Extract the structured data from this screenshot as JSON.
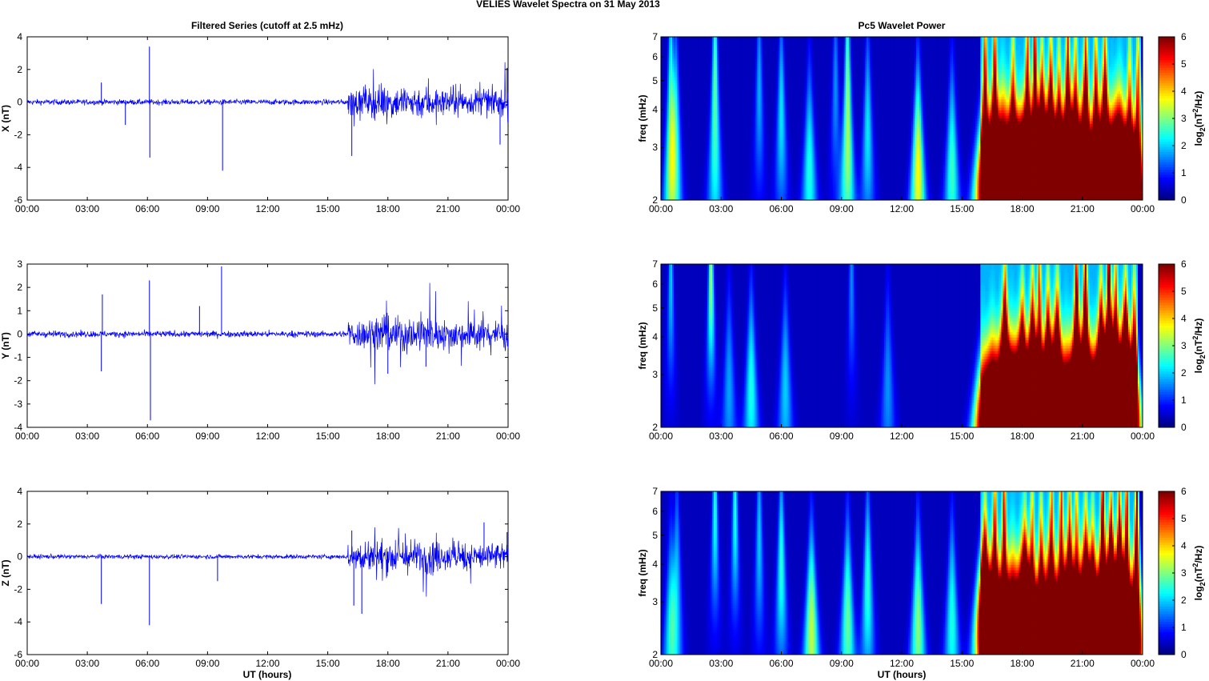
{
  "figure": {
    "title": "VELIES Wavelet Spectra on 31 May      2013",
    "left_title": "Filtered Series (cutoff at 2.5 mHz)",
    "right_title": "Pc5 Wavelet Power",
    "xlabel": "UT (hours)",
    "freq_label": "freq (mHz)",
    "colorbar_label": "log2(nT²/Hz)",
    "colorbar_label_parts": {
      "base": "log",
      "sub": "2",
      "pre": "(nT",
      "sup": "2",
      "post": "/Hz)"
    },
    "colors": {
      "series": "#0000ff",
      "background": "#00008f"
    },
    "colormap": "jet",
    "grid": false
  },
  "chart_data": [
    {
      "type": "line",
      "component": "X",
      "ylabel": "X (nT)",
      "x_ticks": [
        "00:00",
        "03:00",
        "06:00",
        "09:00",
        "12:00",
        "15:00",
        "18:00",
        "21:00",
        "00:00"
      ],
      "xlim_hours": [
        0,
        24
      ],
      "ylim": [
        -6,
        4
      ],
      "y_ticks": [
        4,
        2,
        0,
        -2,
        -4,
        -6
      ],
      "baseline_amplitude": 0.15,
      "active_from_hour": 16.0,
      "active_amplitude": 0.7,
      "spikes": [
        {
          "t": 3.7,
          "v": 1.2
        },
        {
          "t": 4.9,
          "v": -1.4
        },
        {
          "t": 6.1,
          "v": 3.4
        },
        {
          "t": 6.12,
          "v": -3.4
        },
        {
          "t": 9.75,
          "v": -4.2
        },
        {
          "t": 16.2,
          "v": -3.3
        },
        {
          "t": 23.6,
          "v": -2.6
        },
        {
          "t": 23.95,
          "v": 2.1
        }
      ]
    },
    {
      "type": "line",
      "component": "Y",
      "ylabel": "Y (nT)",
      "x_ticks": [
        "00:00",
        "03:00",
        "06:00",
        "09:00",
        "12:00",
        "15:00",
        "18:00",
        "21:00",
        "00:00"
      ],
      "xlim_hours": [
        0,
        24
      ],
      "ylim": [
        -4,
        3
      ],
      "y_ticks": [
        3,
        2,
        1,
        0,
        -1,
        -2,
        -3,
        -4
      ],
      "baseline_amplitude": 0.12,
      "active_from_hour": 16.0,
      "active_amplitude": 0.55,
      "spikes": [
        {
          "t": 3.7,
          "v": -1.6
        },
        {
          "t": 3.75,
          "v": 1.7
        },
        {
          "t": 6.1,
          "v": 2.3
        },
        {
          "t": 6.15,
          "v": -3.7
        },
        {
          "t": 8.6,
          "v": 1.2
        },
        {
          "t": 9.7,
          "v": 2.9
        },
        {
          "t": 18.0,
          "v": -1.7
        },
        {
          "t": 19.9,
          "v": -1.4
        }
      ]
    },
    {
      "type": "line",
      "component": "Z",
      "ylabel": "Z (nT)",
      "x_ticks": [
        "00:00",
        "03:00",
        "06:00",
        "09:00",
        "12:00",
        "15:00",
        "18:00",
        "21:00",
        "00:00"
      ],
      "xlim_hours": [
        0,
        24
      ],
      "ylim": [
        -6,
        4
      ],
      "y_ticks": [
        4,
        2,
        0,
        -2,
        -4,
        -6
      ],
      "baseline_amplitude": 0.12,
      "active_from_hour": 16.0,
      "active_amplitude": 0.75,
      "spikes": [
        {
          "t": 3.7,
          "v": -2.9
        },
        {
          "t": 6.1,
          "v": -4.2
        },
        {
          "t": 9.5,
          "v": -1.5
        },
        {
          "t": 16.3,
          "v": -3.0
        },
        {
          "t": 16.7,
          "v": -3.5
        },
        {
          "t": 16.2,
          "v": 1.6
        },
        {
          "t": 22.8,
          "v": 2.1
        },
        {
          "t": 23.95,
          "v": 1.5
        }
      ]
    },
    {
      "type": "heatmap",
      "component": "X",
      "ylabel": "freq (mHz)",
      "yscale": "log",
      "ylim": [
        2,
        7
      ],
      "y_ticks": [
        2,
        3,
        4,
        5,
        6,
        7
      ],
      "x_ticks": [
        "00:00",
        "03:00",
        "06:00",
        "09:00",
        "12:00",
        "15:00",
        "18:00",
        "21:00",
        "00:00"
      ],
      "xlim_hours": [
        0,
        24
      ],
      "clim": [
        0,
        6
      ],
      "colorbar_ticks": [
        0,
        1,
        2,
        3,
        4,
        5,
        6
      ],
      "quiet_bursts": [
        {
          "t": 0.5,
          "f": 2.4,
          "p": 2.3
        },
        {
          "t": 0.75,
          "f": 3.6,
          "p": 2.0
        },
        {
          "t": 0.5,
          "f": 6.3,
          "p": 1.6
        },
        {
          "t": 2.7,
          "f": 2.5,
          "p": 1.8
        },
        {
          "t": 2.7,
          "f": 6.5,
          "p": 2.2
        },
        {
          "t": 4.9,
          "f": 4.8,
          "p": 1.6
        },
        {
          "t": 6.0,
          "f": 3.9,
          "p": 2.0
        },
        {
          "t": 7.4,
          "f": 2.5,
          "p": 2.3
        },
        {
          "t": 8.7,
          "f": 4.8,
          "p": 1.4
        },
        {
          "t": 9.3,
          "f": 6.6,
          "p": 2.0
        },
        {
          "t": 9.3,
          "f": 2.6,
          "p": 2.6
        },
        {
          "t": 10.3,
          "f": 3.4,
          "p": 2.0
        },
        {
          "t": 12.8,
          "f": 2.5,
          "p": 3.8
        },
        {
          "t": 14.5,
          "f": 2.5,
          "p": 2.5
        }
      ],
      "active_from_hour": 15.9,
      "active_until_hour": 23.8
    },
    {
      "type": "heatmap",
      "component": "Y",
      "ylabel": "freq (mHz)",
      "yscale": "log",
      "ylim": [
        2,
        7
      ],
      "y_ticks": [
        2,
        3,
        4,
        5,
        6,
        7
      ],
      "x_ticks": [
        "00:00",
        "03:00",
        "06:00",
        "09:00",
        "12:00",
        "15:00",
        "18:00",
        "21:00",
        "00:00"
      ],
      "xlim_hours": [
        0,
        24
      ],
      "clim": [
        0,
        6
      ],
      "colorbar_ticks": [
        0,
        1,
        2,
        3,
        4,
        5,
        6
      ],
      "quiet_bursts": [
        {
          "t": 0.5,
          "f": 6.4,
          "p": 1.8
        },
        {
          "t": 2.5,
          "f": 6.5,
          "p": 3.2
        },
        {
          "t": 3.4,
          "f": 2.7,
          "p": 1.5
        },
        {
          "t": 4.5,
          "f": 2.7,
          "p": 2.3
        },
        {
          "t": 6.2,
          "f": 2.7,
          "p": 1.8
        },
        {
          "t": 9.5,
          "f": 6.5,
          "p": 1.4
        },
        {
          "t": 11.3,
          "f": 2.7,
          "p": 1.4
        }
      ],
      "active_from_hour": 15.9,
      "active_until_hour": 23.8
    },
    {
      "type": "heatmap",
      "component": "Z",
      "ylabel": "freq (mHz)",
      "yscale": "log",
      "ylim": [
        2,
        7
      ],
      "y_ticks": [
        2,
        3,
        4,
        5,
        6,
        7
      ],
      "x_ticks": [
        "00:00",
        "03:00",
        "06:00",
        "09:00",
        "12:00",
        "15:00",
        "18:00",
        "21:00",
        "00:00"
      ],
      "xlim_hours": [
        0,
        24
      ],
      "clim": [
        0,
        6
      ],
      "colorbar_ticks": [
        0,
        1,
        2,
        3,
        4,
        5,
        6
      ],
      "quiet_bursts": [
        {
          "t": 0.5,
          "f": 2.4,
          "p": 2.0
        },
        {
          "t": 0.8,
          "f": 3.7,
          "p": 1.6
        },
        {
          "t": 2.7,
          "f": 6.3,
          "p": 2.4
        },
        {
          "t": 3.7,
          "f": 6.3,
          "p": 2.4
        },
        {
          "t": 4.9,
          "f": 5.0,
          "p": 1.8
        },
        {
          "t": 6.0,
          "f": 4.0,
          "p": 2.4
        },
        {
          "t": 7.5,
          "f": 2.4,
          "p": 3.4
        },
        {
          "t": 9.3,
          "f": 2.6,
          "p": 2.8
        },
        {
          "t": 10.3,
          "f": 3.4,
          "p": 2.4
        },
        {
          "t": 12.8,
          "f": 2.5,
          "p": 3.0
        },
        {
          "t": 14.5,
          "f": 2.6,
          "p": 2.3
        }
      ],
      "active_from_hour": 15.9,
      "active_until_hour": 23.8
    }
  ]
}
